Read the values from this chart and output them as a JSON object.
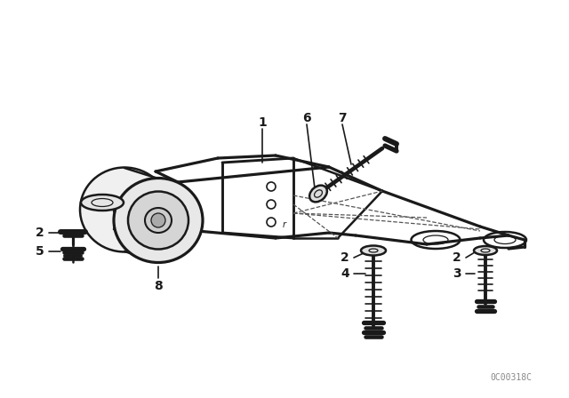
{
  "bg_color": "#ffffff",
  "line_color": "#1a1a1a",
  "watermark": "0C00318C",
  "figsize": [
    6.4,
    4.48
  ],
  "dpi": 100,
  "label_fs": 10,
  "lw_main": 1.8,
  "lw_thin": 0.9
}
